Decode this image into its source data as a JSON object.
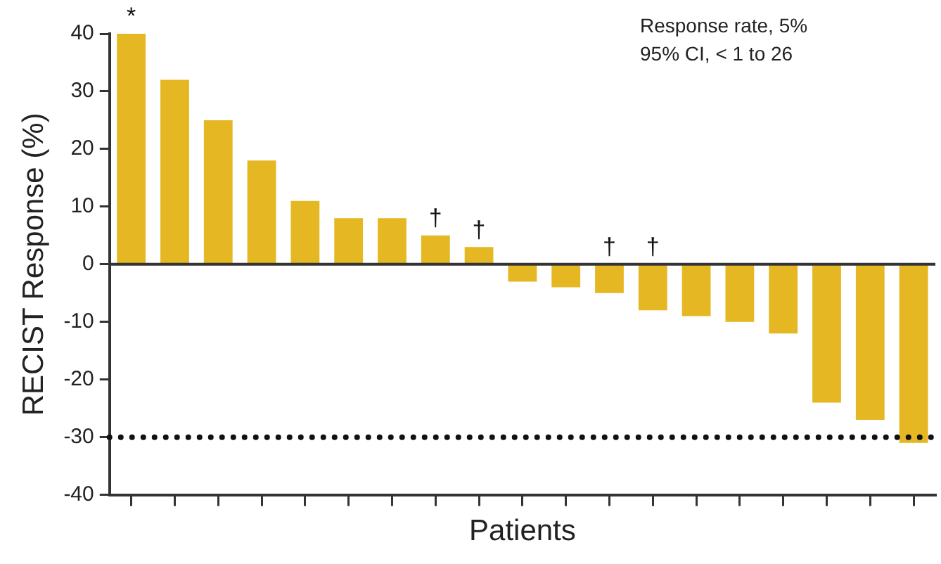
{
  "chart_data": {
    "type": "bar",
    "ylabel": "RECIST Response (%)",
    "xlabel": "Patients",
    "categories": [
      null,
      null,
      null,
      null,
      null,
      null,
      null,
      null,
      null,
      null,
      null,
      null,
      null,
      null,
      null,
      null,
      null,
      null,
      null
    ],
    "values": [
      40,
      32,
      25,
      18,
      11,
      8,
      8,
      5,
      3,
      -3,
      -4,
      -5,
      -8,
      -9,
      -10,
      -12,
      -24,
      -27,
      -31
    ],
    "value_labels": [
      "*",
      null,
      null,
      null,
      null,
      null,
      null,
      "†",
      "†",
      null,
      null,
      "†",
      "†",
      null,
      null,
      null,
      null,
      null,
      null
    ],
    "color": "#e5b722",
    "ylim": [
      -40,
      40
    ],
    "yticks": [
      -40,
      -30,
      -20,
      -10,
      0,
      10,
      20,
      30,
      40
    ],
    "ref_lines": [
      {
        "axis": "y",
        "value": 0,
        "line_style": "solid",
        "color": "#333333"
      },
      {
        "axis": "y",
        "value": -30,
        "line_style": "dotted",
        "color": "#111111"
      }
    ],
    "annotations": [
      "Response rate, 5%",
      "95% CI, < 1 to 26"
    ],
    "grid": false,
    "legend": false,
    "tick_labels": "y"
  }
}
